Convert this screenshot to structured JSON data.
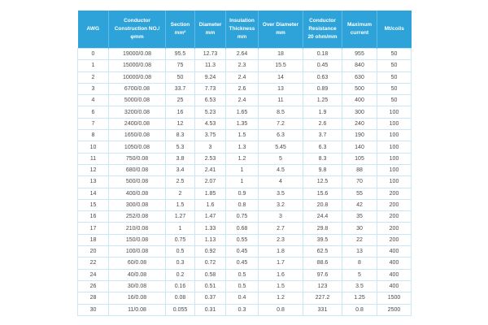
{
  "colors": {
    "header_bg": "#2ea3da",
    "header_text": "#ffffff",
    "header_divider": "#5fbbe6",
    "grid_line": "#c9e8f7",
    "body_text": "#4a4a4a",
    "page_bg": "#ffffff"
  },
  "table": {
    "columns": [
      "AWG",
      "Conductor Construction NO./φmm",
      "Section mm²",
      "Diameter mm",
      "Insulation Thickness mm",
      "Over Diameter mm",
      "Conductor Resistance 20 ohm/mm",
      "Maximum current",
      "Mt/coils"
    ],
    "rows": [
      [
        "0",
        "19000/0.08",
        "95.5",
        "12.73",
        "2.64",
        "18",
        "0.18",
        "955",
        "50"
      ],
      [
        "1",
        "15000/0.08",
        "75",
        "11.3",
        "2.3",
        "15.5",
        "0.45",
        "840",
        "50"
      ],
      [
        "2",
        "10000/0.08",
        "50",
        "9.24",
        "2.4",
        "14",
        "0.63",
        "630",
        "50"
      ],
      [
        "3",
        "6700/0.08",
        "33.7",
        "7.73",
        "2.6",
        "13",
        "0.89",
        "500",
        "50"
      ],
      [
        "4",
        "5000/0.08",
        "25",
        "6.53",
        "2.4",
        "11",
        "1.25",
        "400",
        "50"
      ],
      [
        "6",
        "3200/0.08",
        "16",
        "5.23",
        "1.65",
        "8.5",
        "1.9",
        "300",
        "100"
      ],
      [
        "7",
        "2400/0.08",
        "12",
        "4.53",
        "1.35",
        "7.2",
        "2.6",
        "240",
        "100"
      ],
      [
        "8",
        "1650/0.08",
        "8.3",
        "3.75",
        "1.5",
        "6.3",
        "3.7",
        "190",
        "100"
      ],
      [
        "10",
        "1050/0.08",
        "5.3",
        "3",
        "1.3",
        "5.45",
        "6.3",
        "140",
        "100"
      ],
      [
        "11",
        "750/0.08",
        "3.8",
        "2.53",
        "1.2",
        "5",
        "8.3",
        "105",
        "100"
      ],
      [
        "12",
        "680/0.08",
        "3.4",
        "2.41",
        "1",
        "4.5",
        "9.8",
        "88",
        "100"
      ],
      [
        "13",
        "500/0.08",
        "2.5",
        "2.07",
        "1",
        "4",
        "12.5",
        "70",
        "100"
      ],
      [
        "14",
        "400/0.08",
        "2",
        "1.85",
        "0.9",
        "3.5",
        "15.6",
        "55",
        "200"
      ],
      [
        "15",
        "300/0.08",
        "1.5",
        "1.6",
        "0.8",
        "3.2",
        "20.8",
        "42",
        "200"
      ],
      [
        "16",
        "252/0.08",
        "1.27",
        "1.47",
        "0.75",
        "3",
        "24.4",
        "35",
        "200"
      ],
      [
        "17",
        "210/0.08",
        "1",
        "1.33",
        "0.68",
        "2.7",
        "29.8",
        "30",
        "200"
      ],
      [
        "18",
        "150/0.08",
        "0.75",
        "1.13",
        "0.55",
        "2.3",
        "39.5",
        "22",
        "200"
      ],
      [
        "20",
        "100/0.08",
        "0.5",
        "0.92",
        "0.45",
        "1.8",
        "62.5",
        "13",
        "400"
      ],
      [
        "22",
        "60/0.08",
        "0.3",
        "0.72",
        "0.45",
        "1.7",
        "88.6",
        "8",
        "400"
      ],
      [
        "24",
        "40/0.08",
        "0.2",
        "0.58",
        "0.5",
        "1.6",
        "97.6",
        "5",
        "400"
      ],
      [
        "26",
        "30/0.08",
        "0.16",
        "0.51",
        "0.5",
        "1.5",
        "123",
        "3.5",
        "400"
      ],
      [
        "28",
        "16/0.08",
        "0.08",
        "0.37",
        "0.4",
        "1.2",
        "227.2",
        "1.25",
        "1500"
      ],
      [
        "30",
        "11/0.08",
        "0.055",
        "0.31",
        "0.3",
        "0.8",
        "331",
        "0.8",
        "2500"
      ]
    ]
  }
}
